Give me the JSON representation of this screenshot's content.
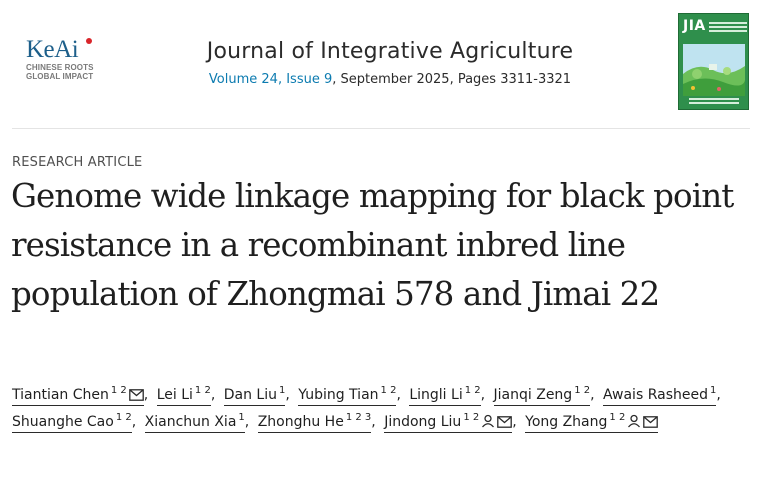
{
  "publisher": {
    "name": "KeAi",
    "tagline_line1": "CHINESE ROOTS",
    "tagline_line2": "GLOBAL IMPACT"
  },
  "journal": {
    "title": "Journal of Integrative Agriculture",
    "volume_issue": "Volume 24, Issue 9",
    "date_pages": ", September 2025, Pages 3311-3321",
    "cover_abbrev": "JIA"
  },
  "article": {
    "type": "RESEARCH ARTICLE",
    "title": "Genome wide linkage mapping for black point resistance in a recombinant inbred line population of Zhongmai 578 and Jimai 22"
  },
  "authors": [
    {
      "name": "Tiantian Chen",
      "affil": "1 2",
      "mail": true,
      "person": false
    },
    {
      "name": "Lei Li",
      "affil": "1 2",
      "mail": false,
      "person": false
    },
    {
      "name": "Dan Liu",
      "affil": "1",
      "mail": false,
      "person": false
    },
    {
      "name": "Yubing Tian",
      "affil": "1 2",
      "mail": false,
      "person": false
    },
    {
      "name": "Lingli Li",
      "affil": "1 2",
      "mail": false,
      "person": false
    },
    {
      "name": "Jianqi Zeng",
      "affil": "1 2",
      "mail": false,
      "person": false
    },
    {
      "name": "Awais Rasheed",
      "affil": "1",
      "mail": false,
      "person": false
    },
    {
      "name": "Shuanghe Cao",
      "affil": "1 2",
      "mail": false,
      "person": false
    },
    {
      "name": "Xianchun Xia",
      "affil": "1",
      "mail": false,
      "person": false
    },
    {
      "name": "Zhonghu He",
      "affil": "1 2 3",
      "mail": false,
      "person": false
    },
    {
      "name": "Jindong Liu",
      "affil": "1 2",
      "mail": true,
      "person": true
    },
    {
      "name": "Yong Zhang",
      "affil": "1 2",
      "mail": true,
      "person": true
    }
  ],
  "colors": {
    "link": "#0c7bb0",
    "keai_blue": "#1d5f8a",
    "cover_green": "#2f8f4c"
  }
}
